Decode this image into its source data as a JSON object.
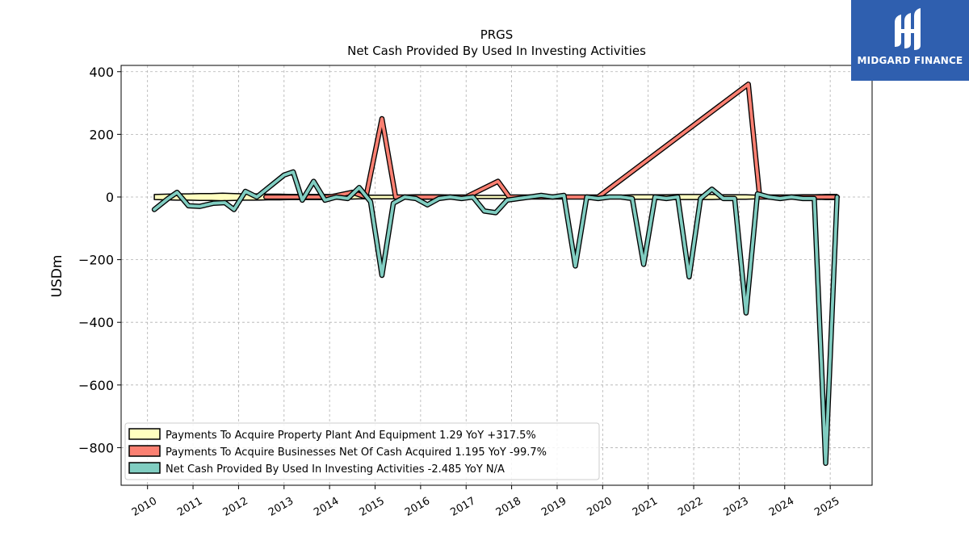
{
  "brand": {
    "name": "MIDGARD FINANCE",
    "bg_color": "#2f5faf"
  },
  "chart_data": {
    "type": "line",
    "title": "PRGS",
    "subtitle": "Net Cash Provided By Used In Investing Activities",
    "ylabel": "USDm",
    "xlabel": "",
    "ylim": [
      -920,
      420
    ],
    "xlim": [
      2009.42,
      2025.92
    ],
    "yticks": [
      400,
      200,
      0,
      -200,
      -400,
      -600,
      -800
    ],
    "ytick_labels": [
      "400",
      "200",
      "0",
      "−200",
      "−400",
      "−600",
      "−800"
    ],
    "xticks": [
      "2010",
      "2011",
      "2012",
      "2013",
      "2014",
      "2015",
      "2016",
      "2017",
      "2018",
      "2019",
      "2020",
      "2021",
      "2022",
      "2023",
      "2024",
      "2025"
    ],
    "grid": true,
    "legend_position": "bottom-left",
    "series": [
      {
        "name": "Payments To Acquire Property Plant And Equipment",
        "legend_label": "Payments To Acquire Property Plant And Equipment  1.29 YoY +317.5%",
        "color": "#ffffc0",
        "kind": "area-band",
        "points": [
          [
            2010.15,
            8
          ],
          [
            2010.4,
            9
          ],
          [
            2010.65,
            10
          ],
          [
            2010.9,
            10
          ],
          [
            2011.15,
            11
          ],
          [
            2011.4,
            11
          ],
          [
            2011.65,
            12
          ],
          [
            2011.9,
            11
          ],
          [
            2012.15,
            10
          ],
          [
            2012.4,
            10
          ],
          [
            2012.65,
            9
          ],
          [
            2012.9,
            9
          ],
          [
            2013.15,
            8
          ],
          [
            2013.4,
            8
          ],
          [
            2013.65,
            8
          ],
          [
            2013.9,
            8
          ],
          [
            2014.15,
            7
          ],
          [
            2014.4,
            7
          ],
          [
            2014.65,
            6
          ],
          [
            2014.9,
            6
          ],
          [
            2015.15,
            6
          ],
          [
            2015.4,
            6
          ],
          [
            2015.65,
            6
          ],
          [
            2015.9,
            7
          ],
          [
            2016.15,
            7
          ],
          [
            2016.4,
            7
          ],
          [
            2016.65,
            6
          ],
          [
            2016.9,
            6
          ],
          [
            2017.15,
            5
          ],
          [
            2017.4,
            5
          ],
          [
            2017.65,
            5
          ],
          [
            2017.9,
            5
          ],
          [
            2018.15,
            5
          ],
          [
            2018.4,
            5
          ],
          [
            2018.65,
            5
          ],
          [
            2018.9,
            5
          ],
          [
            2019.15,
            5
          ],
          [
            2019.4,
            5
          ],
          [
            2019.65,
            5
          ],
          [
            2019.9,
            5
          ],
          [
            2020.15,
            5
          ],
          [
            2020.4,
            6
          ],
          [
            2020.65,
            7
          ],
          [
            2020.9,
            7
          ],
          [
            2021.15,
            7
          ],
          [
            2021.4,
            7
          ],
          [
            2021.65,
            8
          ],
          [
            2021.9,
            8
          ],
          [
            2022.15,
            8
          ],
          [
            2022.4,
            8
          ],
          [
            2022.65,
            7
          ],
          [
            2022.9,
            7
          ],
          [
            2023.15,
            7
          ],
          [
            2023.4,
            6
          ],
          [
            2023.65,
            6
          ],
          [
            2023.9,
            6
          ],
          [
            2024.15,
            6
          ],
          [
            2024.4,
            7
          ],
          [
            2024.65,
            7
          ],
          [
            2024.9,
            8
          ],
          [
            2025.15,
            8
          ]
        ]
      },
      {
        "name": "Payments To Acquire Businesses Net Of Cash Acquired",
        "legend_label": "Payments To Acquire Businesses Net Of Cash Acquired  1.195 YoY -99.7%",
        "color": "#fb8072",
        "kind": "line",
        "points": [
          [
            2012.6,
            0
          ],
          [
            2014.0,
            0
          ],
          [
            2014.5,
            15
          ],
          [
            2014.8,
            0
          ],
          [
            2015.15,
            250
          ],
          [
            2015.45,
            0
          ],
          [
            2017.0,
            0
          ],
          [
            2017.7,
            50
          ],
          [
            2017.95,
            0
          ],
          [
            2019.9,
            0
          ],
          [
            2023.2,
            360
          ],
          [
            2023.45,
            0
          ],
          [
            2025.15,
            0
          ]
        ]
      },
      {
        "name": "Net Cash Provided By Used In Investing Activities",
        "legend_label": "Net Cash Provided By Used In Investing Activities  -2.485 YoY N/A",
        "color": "#80cdc1",
        "kind": "line",
        "points": [
          [
            2010.15,
            -40
          ],
          [
            2010.45,
            -5
          ],
          [
            2010.65,
            15
          ],
          [
            2010.9,
            -28
          ],
          [
            2011.15,
            -30
          ],
          [
            2011.45,
            -20
          ],
          [
            2011.7,
            -18
          ],
          [
            2011.9,
            -40
          ],
          [
            2012.15,
            18
          ],
          [
            2012.4,
            0
          ],
          [
            2013.0,
            70
          ],
          [
            2013.2,
            80
          ],
          [
            2013.4,
            -10
          ],
          [
            2013.65,
            50
          ],
          [
            2013.9,
            -10
          ],
          [
            2014.15,
            0
          ],
          [
            2014.4,
            -5
          ],
          [
            2014.65,
            30
          ],
          [
            2014.9,
            -15
          ],
          [
            2015.15,
            -250
          ],
          [
            2015.4,
            -20
          ],
          [
            2015.65,
            0
          ],
          [
            2015.9,
            -5
          ],
          [
            2016.15,
            -25
          ],
          [
            2016.4,
            -5
          ],
          [
            2016.65,
            0
          ],
          [
            2016.9,
            -5
          ],
          [
            2017.15,
            0
          ],
          [
            2017.4,
            -45
          ],
          [
            2017.65,
            -50
          ],
          [
            2017.9,
            -10
          ],
          [
            2018.15,
            -5
          ],
          [
            2018.4,
            0
          ],
          [
            2018.65,
            5
          ],
          [
            2018.9,
            0
          ],
          [
            2019.15,
            5
          ],
          [
            2019.4,
            -220
          ],
          [
            2019.65,
            0
          ],
          [
            2019.9,
            -5
          ],
          [
            2020.15,
            0
          ],
          [
            2020.4,
            0
          ],
          [
            2020.65,
            -5
          ],
          [
            2020.9,
            -215
          ],
          [
            2021.15,
            0
          ],
          [
            2021.4,
            -5
          ],
          [
            2021.65,
            0
          ],
          [
            2021.9,
            -255
          ],
          [
            2022.15,
            -5
          ],
          [
            2022.4,
            25
          ],
          [
            2022.65,
            -5
          ],
          [
            2022.9,
            -5
          ],
          [
            2023.15,
            -370
          ],
          [
            2023.4,
            10
          ],
          [
            2023.65,
            0
          ],
          [
            2023.9,
            -5
          ],
          [
            2024.15,
            0
          ],
          [
            2024.4,
            -5
          ],
          [
            2024.65,
            -5
          ],
          [
            2024.9,
            -850
          ],
          [
            2025.15,
            0
          ]
        ]
      }
    ]
  }
}
